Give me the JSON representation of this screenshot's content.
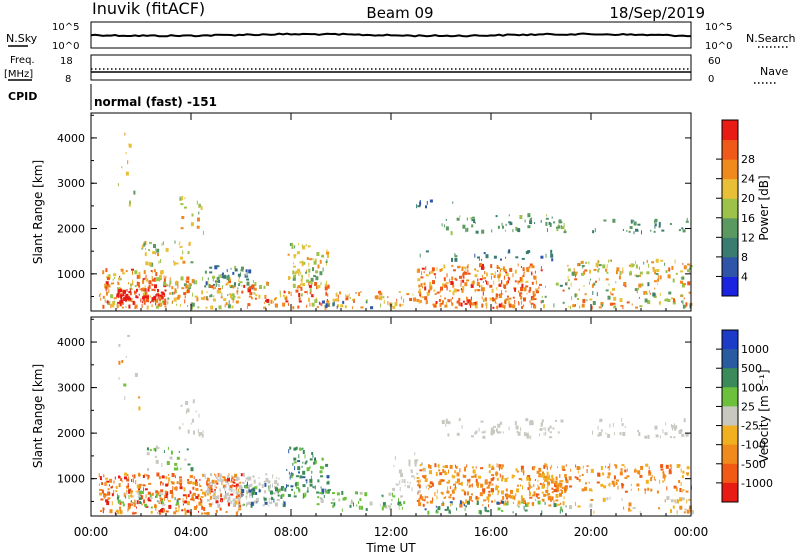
{
  "header": {
    "station": "Inuvik (fitACF)",
    "beam": "Beam 09",
    "date": "18/Sep/2019"
  },
  "strip_panels": {
    "nsky": {
      "label": "N.Sky",
      "ticks": [
        "10^5",
        "10^0"
      ]
    },
    "nsearch": {
      "label": "N.Search",
      "ticks": [
        "10^5",
        "10^0"
      ]
    },
    "freq": {
      "label_line1": "Freq.",
      "label_line2": "[MHz]",
      "ticks": [
        "18",
        "8"
      ]
    },
    "nave": {
      "label": "Nave",
      "ticks": [
        "60",
        "0"
      ]
    },
    "cpid": {
      "label": "CPID",
      "text": "normal (fast) -151"
    }
  },
  "chart_data": [
    {
      "type": "heatmap",
      "title": "",
      "xlabel": "",
      "ylabel": "Slant Range [km]",
      "x_ticks": [
        "00:00",
        "04:00",
        "08:00",
        "12:00",
        "16:00",
        "20:00",
        "00:00"
      ],
      "y_ticks": [
        "1000",
        "2000",
        "3000",
        "4000"
      ],
      "xlim_hours": [
        0,
        24
      ],
      "ylim_km": [
        180,
        4550
      ],
      "colorbar": {
        "label": "Power [dB]",
        "ticks": [
          "4",
          "8",
          "12",
          "16",
          "20",
          "24",
          "28"
        ],
        "range": [
          0,
          30
        ],
        "colors": [
          "#1a24e0",
          "#2e55a8",
          "#3a7c70",
          "#5a9a60",
          "#9cc24a",
          "#e8c038",
          "#f08a1c",
          "#f05a18",
          "#e81c14"
        ]
      }
    },
    {
      "type": "heatmap",
      "title": "",
      "xlabel": "Time UT",
      "ylabel": "Slant Range [km]",
      "x_ticks": [
        "00:00",
        "04:00",
        "08:00",
        "12:00",
        "16:00",
        "20:00",
        "00:00"
      ],
      "y_ticks": [
        "1000",
        "2000",
        "3000",
        "4000"
      ],
      "xlim_hours": [
        0,
        24
      ],
      "ylim_km": [
        180,
        4550
      ],
      "colorbar": {
        "label": "Velocity [m s⁻¹]",
        "ticks": [
          "1000",
          "500",
          "100",
          "25",
          "-25",
          "-100",
          "-500",
          "-1000"
        ],
        "colors": [
          "#1c3cc8",
          "#2a5aa0",
          "#3a8a5a",
          "#6cc03c",
          "#c8c8c0",
          "#f0b020",
          "#f08a1c",
          "#f05a14",
          "#e81c14"
        ]
      }
    }
  ]
}
